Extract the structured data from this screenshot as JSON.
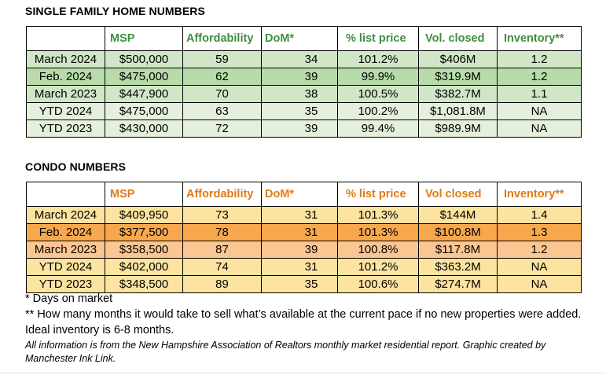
{
  "single_family": {
    "title": "SINGLE FAMILY HOME NUMBERS",
    "headers": [
      "",
      "MSP",
      "Affordability",
      "DoM*",
      "% list price",
      "Vol. closed",
      "Inventory**"
    ],
    "rows": [
      [
        "March 2024",
        "$500,000",
        "59",
        "34",
        "101.2%",
        "$406M",
        "1.2"
      ],
      [
        "Feb. 2024",
        "$475,000",
        "62",
        "39",
        "99.9%",
        "$319.9M",
        "1.2"
      ],
      [
        "March 2023",
        "$447,900",
        "70",
        "38",
        "100.5%",
        "$382.7M",
        "1.1"
      ],
      [
        "YTD 2024",
        "$475,000",
        "63",
        "35",
        "100.2%",
        "$1,081.8M",
        "NA"
      ],
      [
        "YTD 2023",
        "$430,000",
        "72",
        "39",
        "99.4%",
        "$989.9M",
        "NA"
      ]
    ]
  },
  "condo": {
    "title": "CONDO NUMBERS",
    "headers": [
      "",
      "MSP",
      "Affordability",
      "DoM*",
      "% list price",
      "Vol closed",
      "Inventory**"
    ],
    "rows": [
      [
        "March 2024",
        "$409,950",
        "73",
        "31",
        "101.3%",
        "$144M",
        "1.4"
      ],
      [
        "Feb. 2024",
        "$377,500",
        "78",
        "31",
        "101.3%",
        "$100.8M",
        "1.3"
      ],
      [
        "March 2023",
        "$358,500",
        "87",
        "39",
        "100.8%",
        "$117.8M",
        "1.2"
      ],
      [
        "YTD 2024",
        "$402,000",
        "74",
        "31",
        "101.2%",
        "$363.2M",
        "NA"
      ],
      [
        "YTD 2023",
        "$348,500",
        "89",
        "35",
        "100.6%",
        "$274.7M",
        "NA"
      ]
    ]
  },
  "notes": {
    "dom": "* Days on market",
    "inventory": "** How many months it would take to sell what’s available at the current pace if no new properties were added. Ideal inventory is 6-8 months.",
    "source": "All information is from the New Hampshire Association of Realtors monthly market residential report. Graphic created by Manchester Ink Link."
  },
  "colors": {
    "sf_header_text": "#3f8f3f",
    "condo_header_text": "#e07a12",
    "sf_row_dark": "#b7dcaa",
    "condo_row_dark": "#f7a84e"
  }
}
